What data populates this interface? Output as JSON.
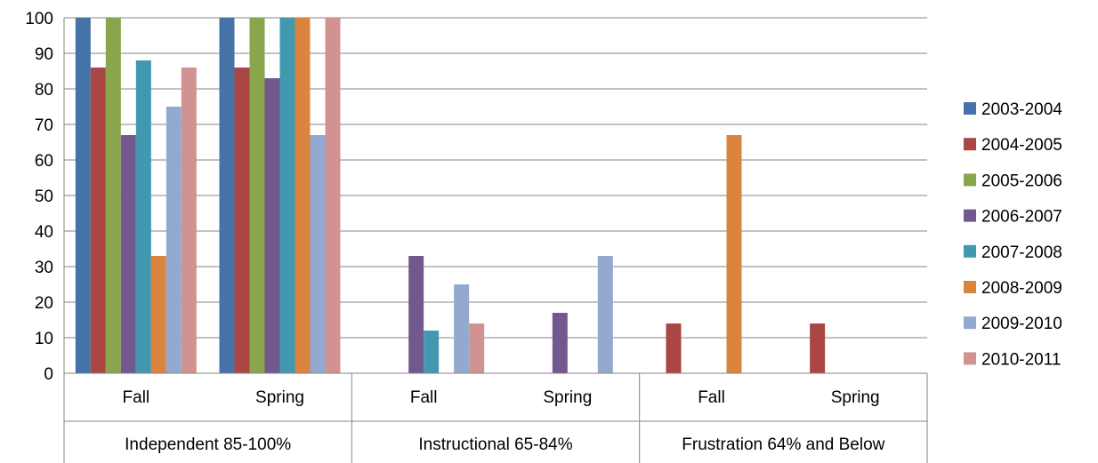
{
  "chart_data": {
    "type": "bar",
    "title": "",
    "xlabel": "",
    "ylabel": "",
    "ylim": [
      0,
      100
    ],
    "yticks": [
      0,
      10,
      20,
      30,
      40,
      50,
      60,
      70,
      80,
      90,
      100
    ],
    "grid": true,
    "legend_position": "right",
    "groups": [
      {
        "label": "Independent 85-100%",
        "categories": [
          "Fall",
          "Spring"
        ]
      },
      {
        "label": "Instructional 65-84%",
        "categories": [
          "Fall",
          "Spring"
        ]
      },
      {
        "label": "Frustration 64% and Below",
        "categories": [
          "Fall",
          "Spring"
        ]
      }
    ],
    "series": [
      {
        "name": "2003-2004",
        "color": "#4572A7",
        "values": [
          100,
          100,
          0,
          0,
          0,
          0
        ]
      },
      {
        "name": "2004-2005",
        "color": "#AA4643",
        "values": [
          86,
          86,
          0,
          0,
          14,
          14
        ]
      },
      {
        "name": "2005-2006",
        "color": "#89A54E",
        "values": [
          100,
          100,
          0,
          0,
          0,
          0
        ]
      },
      {
        "name": "2006-2007",
        "color": "#71588F",
        "values": [
          67,
          83,
          33,
          17,
          0,
          0
        ]
      },
      {
        "name": "2007-2008",
        "color": "#4198AF",
        "values": [
          88,
          100,
          12,
          0,
          0,
          0
        ]
      },
      {
        "name": "2008-2009",
        "color": "#DB843D",
        "values": [
          33,
          100,
          0,
          0,
          67,
          0
        ]
      },
      {
        "name": "2009-2010",
        "color": "#93A9CF",
        "values": [
          75,
          67,
          25,
          33,
          0,
          0
        ]
      },
      {
        "name": "2010-2011",
        "color": "#D19392",
        "values": [
          86,
          100,
          14,
          0,
          0,
          0
        ]
      }
    ]
  }
}
